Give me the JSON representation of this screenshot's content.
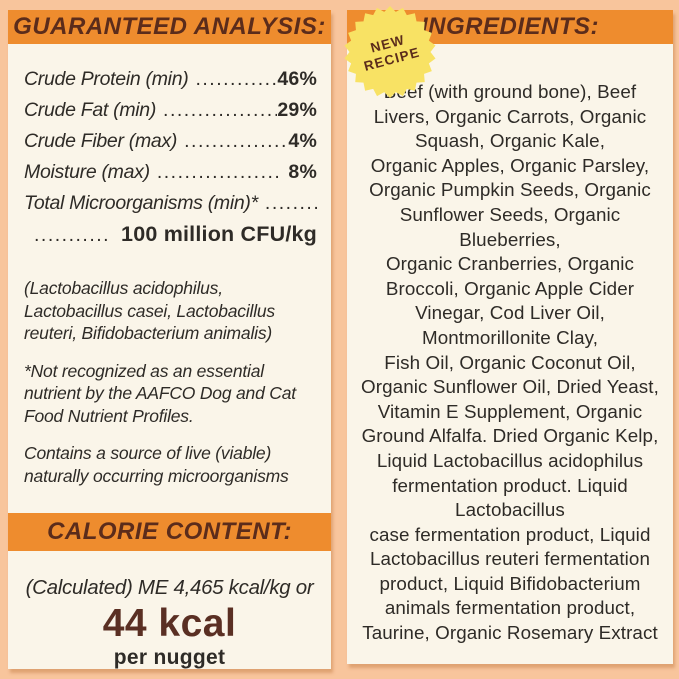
{
  "colors": {
    "background": "#f8c59c",
    "panel": "#faf5e9",
    "band_orange": "#ee8c2e",
    "header_brown": "#5b2c1b",
    "body_text": "#2e2b27",
    "calorie_brown": "#5a2f23",
    "badge_yellow": "#f8e264"
  },
  "left_panel": {
    "header": "GUARANTEED ANALYSIS:",
    "analysis_rows": [
      {
        "label": "Crude Protein (min)",
        "dots": ".............",
        "value": "46%"
      },
      {
        "label": "Crude Fat (min)",
        "dots": "..................",
        "value": "29%"
      },
      {
        "label": "Crude Fiber (max)",
        "dots": "................",
        "value": "4%"
      },
      {
        "label": "Moisture (max)",
        "dots": "..................",
        "value": "8%"
      },
      {
        "label": "Total Microorganisms (min)*",
        "dots": "..........",
        "value": ""
      }
    ],
    "cfu_row": {
      "dots": "..............",
      "value": "100 million CFU/kg"
    },
    "microorganism_note": "(Lactobacillus acidophilus, Lactobacillus casei, Lactobacillus reuteri, Bifidobacterium animalis)",
    "aafco_note": "*Not recognized as an essential nutrient by the AAFCO Dog and Cat Food Nutrient Profiles.",
    "viable_note": "Contains a source of live (viable) naturally occurring microorganisms",
    "calorie_header": "CALORIE CONTENT:",
    "calorie_line": "(Calculated) ME 4,465 kcal/kg or",
    "calorie_value": "44 kcal",
    "calorie_unit": "per nugget"
  },
  "right_panel": {
    "header": "INGREDIENTS:",
    "badge_lines": [
      "NEW",
      "RECIPE"
    ],
    "ingredients_lines": [
      "Beef (with ground bone), Beef",
      "Livers, Organic Carrots, Organic",
      "Squash, Organic Kale,",
      "Organic Apples, Organic Parsley,",
      "Organic Pumpkin Seeds, Organic",
      "Sunflower Seeds, Organic",
      "Blueberries,",
      "Organic Cranberries, Organic",
      "Broccoli, Organic Apple Cider",
      "Vinegar, Cod Liver Oil,",
      "Montmorillonite Clay,",
      "Fish Oil, Organic Coconut Oil,",
      "Organic Sunflower Oil, Dried Yeast,",
      "Vitamin E Supplement, Organic",
      "Ground Alfalfa. Dried Organic Kelp,",
      "Liquid Lactobacillus acidophilus",
      "fermentation product. Liquid",
      "Lactobacillus",
      "case fermentation product, Liquid",
      "Lactobacillus reuteri fermentation",
      "product, Liquid Bifidobacterium",
      "animals fermentation product,",
      "Taurine, Organic Rosemary Extract"
    ]
  }
}
